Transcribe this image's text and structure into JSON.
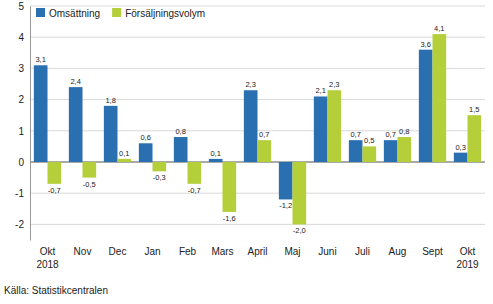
{
  "chart_data": {
    "type": "bar",
    "categories": [
      "Okt 2018",
      "Nov",
      "Dec",
      "Jan",
      "Feb",
      "Mars",
      "April",
      "Maj",
      "Juni",
      "Juli",
      "Aug",
      "Sept",
      "Okt 2019"
    ],
    "series": [
      {
        "name": "Omsättning",
        "color": "#2a6fb0",
        "values": [
          3.1,
          2.4,
          1.8,
          0.6,
          0.8,
          0.1,
          2.3,
          -1.2,
          2.1,
          0.7,
          0.7,
          3.6,
          0.3
        ],
        "value_labels": [
          "3,1",
          "2,4",
          "1,8",
          "0,6",
          "0,8",
          "0,1",
          "2,3",
          "-1,2",
          "2,1",
          "0,7",
          "0,7",
          "3,6",
          "0,3"
        ]
      },
      {
        "name": "Försäljningsvolym",
        "color": "#b5cf3a",
        "values": [
          -0.7,
          -0.5,
          0.1,
          -0.3,
          -0.7,
          -1.6,
          0.7,
          -2.0,
          2.3,
          0.5,
          0.8,
          4.1,
          1.5
        ],
        "value_labels": [
          "-0,7",
          "-0,5",
          "0,1",
          "-0,3",
          "-0,7",
          "-1,6",
          "0,7",
          "-2,0",
          "2,3",
          "0,5",
          "0,8",
          "4,1",
          "1,5"
        ]
      }
    ],
    "ylim": [
      -2.5,
      5
    ],
    "yticks": [
      -2,
      -1,
      0,
      1,
      2,
      3,
      4,
      5
    ],
    "grid": true,
    "legend": "top-left",
    "data_labels": true,
    "annotations": [
      "Källa: Statistikcentralen"
    ]
  }
}
